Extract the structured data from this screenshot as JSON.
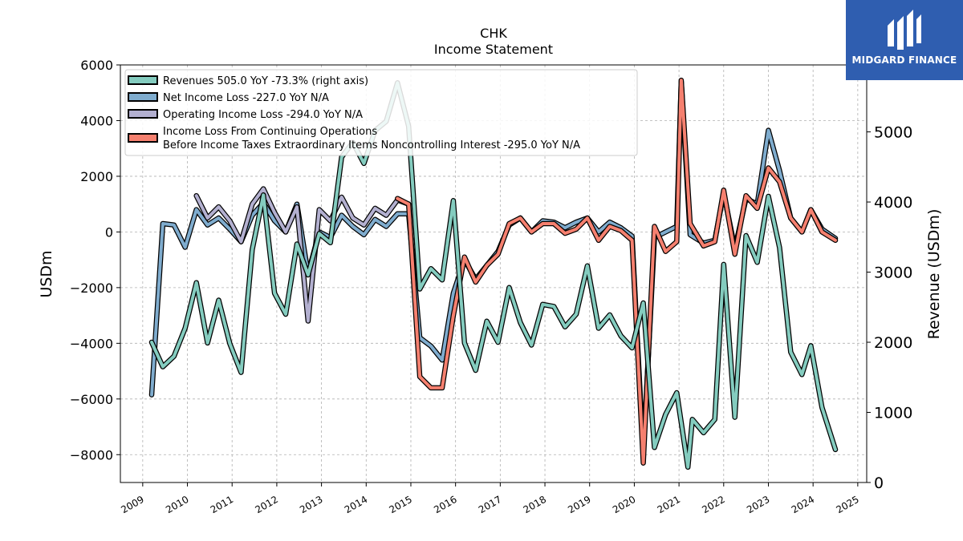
{
  "brand": {
    "name": "MIDGARD FINANCE",
    "bg_color": "#2f5eb0",
    "icon": "midgard-logo-icon"
  },
  "chart_data": {
    "type": "line",
    "title": "CHK",
    "subtitle": "Income Statement",
    "ylabel_left": "USDm",
    "ylabel_right": "Revenue (USDm)",
    "ylim_left": [
      -9000,
      6000
    ],
    "ylim_right": [
      0,
      5955
    ],
    "xlim": [
      2008.5,
      2025.2
    ],
    "yticks_left": [
      -8000,
      -6000,
      -4000,
      -2000,
      0,
      2000,
      4000,
      6000
    ],
    "yticks_right": [
      0,
      1000,
      2000,
      3000,
      4000,
      5000
    ],
    "xticks": [
      2009,
      2010,
      2011,
      2012,
      2013,
      2014,
      2015,
      2016,
      2017,
      2018,
      2019,
      2020,
      2021,
      2022,
      2023,
      2024,
      2025
    ],
    "grid": true,
    "legend_position": "top-left",
    "series": [
      {
        "name": "Revenues  505.0 YoY -73.3% (right axis)",
        "axis": "right",
        "color": "#84ccbf",
        "points": [
          [
            2009.2,
            2000
          ],
          [
            2009.45,
            1650
          ],
          [
            2009.7,
            1800
          ],
          [
            2009.95,
            2200
          ],
          [
            2010.2,
            2850
          ],
          [
            2010.45,
            1990
          ],
          [
            2010.7,
            2600
          ],
          [
            2010.95,
            1980
          ],
          [
            2011.2,
            1570
          ],
          [
            2011.45,
            3320
          ],
          [
            2011.7,
            4100
          ],
          [
            2011.95,
            2700
          ],
          [
            2012.2,
            2400
          ],
          [
            2012.45,
            3400
          ],
          [
            2012.7,
            2960
          ],
          [
            2012.95,
            3550
          ],
          [
            2013.2,
            3420
          ],
          [
            2013.45,
            4640
          ],
          [
            2013.7,
            4850
          ],
          [
            2013.95,
            4550
          ],
          [
            2014.2,
            5020
          ],
          [
            2014.45,
            5150
          ],
          [
            2014.7,
            5700
          ],
          [
            2014.95,
            5080
          ],
          [
            2015.2,
            2760
          ],
          [
            2015.45,
            3050
          ],
          [
            2015.7,
            2890
          ],
          [
            2015.95,
            4020
          ],
          [
            2016.2,
            1990
          ],
          [
            2016.45,
            1600
          ],
          [
            2016.7,
            2300
          ],
          [
            2016.95,
            2000
          ],
          [
            2017.2,
            2780
          ],
          [
            2017.45,
            2280
          ],
          [
            2017.7,
            1960
          ],
          [
            2017.95,
            2540
          ],
          [
            2018.2,
            2510
          ],
          [
            2018.45,
            2220
          ],
          [
            2018.7,
            2400
          ],
          [
            2018.95,
            3090
          ],
          [
            2019.2,
            2200
          ],
          [
            2019.45,
            2390
          ],
          [
            2019.7,
            2090
          ],
          [
            2019.95,
            1920
          ],
          [
            2020.2,
            2560
          ],
          [
            2020.45,
            500
          ],
          [
            2020.7,
            970
          ],
          [
            2020.95,
            1280
          ],
          [
            2021.2,
            220
          ],
          [
            2021.3,
            900
          ],
          [
            2021.55,
            710
          ],
          [
            2021.8,
            900
          ],
          [
            2022.0,
            3110
          ],
          [
            2022.25,
            930
          ],
          [
            2022.5,
            3520
          ],
          [
            2022.75,
            3140
          ],
          [
            2023.0,
            4080
          ],
          [
            2023.25,
            3350
          ],
          [
            2023.5,
            1860
          ],
          [
            2023.75,
            1540
          ],
          [
            2023.95,
            1950
          ],
          [
            2024.2,
            1070
          ],
          [
            2024.5,
            470
          ]
        ]
      },
      {
        "name": "Net Income Loss  -227.0 YoY N/A",
        "axis": "left",
        "color": "#7facce",
        "points": [
          [
            2009.2,
            -5850
          ],
          [
            2009.45,
            300
          ],
          [
            2009.7,
            250
          ],
          [
            2009.95,
            -550
          ],
          [
            2010.2,
            800
          ],
          [
            2010.45,
            250
          ],
          [
            2010.7,
            500
          ],
          [
            2010.95,
            100
          ],
          [
            2011.2,
            -350
          ],
          [
            2011.45,
            600
          ],
          [
            2011.7,
            1050
          ],
          [
            2011.95,
            400
          ],
          [
            2012.2,
            0
          ],
          [
            2012.45,
            1000
          ],
          [
            2012.7,
            -1500
          ],
          [
            2012.95,
            0
          ],
          [
            2013.2,
            -200
          ],
          [
            2013.45,
            600
          ],
          [
            2013.7,
            200
          ],
          [
            2013.95,
            -100
          ],
          [
            2014.2,
            450
          ],
          [
            2014.45,
            200
          ],
          [
            2014.7,
            650
          ],
          [
            2014.95,
            650
          ],
          [
            2015.2,
            -3800
          ],
          [
            2015.45,
            -4100
          ],
          [
            2015.7,
            -4600
          ],
          [
            2015.95,
            -2200
          ],
          [
            2016.2,
            -1000
          ],
          [
            2016.45,
            -1700
          ],
          [
            2016.7,
            -1200
          ],
          [
            2016.95,
            -700
          ],
          [
            2017.2,
            250
          ],
          [
            2017.45,
            500
          ],
          [
            2017.7,
            0
          ],
          [
            2017.95,
            400
          ],
          [
            2018.2,
            350
          ],
          [
            2018.45,
            150
          ],
          [
            2018.7,
            350
          ],
          [
            2018.95,
            500
          ],
          [
            2019.2,
            0
          ],
          [
            2019.45,
            350
          ],
          [
            2019.7,
            150
          ],
          [
            2019.95,
            -150
          ],
          [
            2020.2,
            -8000
          ],
          [
            2020.45,
            -200
          ],
          [
            2020.7,
            0
          ],
          [
            2020.95,
            200
          ],
          [
            2021.05,
            5400
          ],
          [
            2021.25,
            -100
          ],
          [
            2021.55,
            -400
          ],
          [
            2021.8,
            -300
          ],
          [
            2022.0,
            1400
          ],
          [
            2022.25,
            -600
          ],
          [
            2022.5,
            1200
          ],
          [
            2022.75,
            1000
          ],
          [
            2023.0,
            3650
          ],
          [
            2023.25,
            2200
          ],
          [
            2023.5,
            500
          ],
          [
            2023.75,
            0
          ],
          [
            2023.95,
            800
          ],
          [
            2024.2,
            100
          ],
          [
            2024.5,
            -230
          ]
        ]
      },
      {
        "name": "Operating Income Loss  -294.0 YoY N/A",
        "axis": "left",
        "color": "#b3b0d0",
        "points": [
          [
            2010.2,
            1300
          ],
          [
            2010.45,
            500
          ],
          [
            2010.7,
            900
          ],
          [
            2010.95,
            400
          ],
          [
            2011.2,
            -350
          ],
          [
            2011.45,
            1000
          ],
          [
            2011.7,
            1550
          ],
          [
            2011.95,
            700
          ],
          [
            2012.2,
            0
          ],
          [
            2012.45,
            900
          ],
          [
            2012.7,
            -3200
          ],
          [
            2012.95,
            800
          ],
          [
            2013.2,
            400
          ],
          [
            2013.45,
            1250
          ],
          [
            2013.7,
            500
          ],
          [
            2013.95,
            250
          ],
          [
            2014.2,
            850
          ],
          [
            2014.45,
            600
          ],
          [
            2014.7,
            1150
          ],
          [
            2014.95,
            1000
          ]
        ]
      },
      {
        "name": "Income Loss From Continuing Operations Before Income Taxes Extraordinary Items Noncontrolling Interest  -295.0 YoY N/A",
        "axis": "left",
        "color": "#f5806f",
        "points": [
          [
            2014.7,
            1200
          ],
          [
            2014.95,
            1000
          ],
          [
            2015.2,
            -5200
          ],
          [
            2015.45,
            -5600
          ],
          [
            2015.7,
            -5600
          ],
          [
            2015.95,
            -3000
          ],
          [
            2016.2,
            -900
          ],
          [
            2016.45,
            -1800
          ],
          [
            2016.7,
            -1200
          ],
          [
            2016.95,
            -800
          ],
          [
            2017.2,
            300
          ],
          [
            2017.45,
            500
          ],
          [
            2017.7,
            0
          ],
          [
            2017.95,
            300
          ],
          [
            2018.2,
            300
          ],
          [
            2018.45,
            -50
          ],
          [
            2018.7,
            100
          ],
          [
            2018.95,
            500
          ],
          [
            2019.2,
            -300
          ],
          [
            2019.45,
            200
          ],
          [
            2019.7,
            50
          ],
          [
            2019.95,
            -300
          ],
          [
            2020.2,
            -8300
          ],
          [
            2020.45,
            200
          ],
          [
            2020.7,
            -700
          ],
          [
            2020.95,
            -350
          ],
          [
            2021.05,
            5450
          ],
          [
            2021.25,
            300
          ],
          [
            2021.55,
            -500
          ],
          [
            2021.8,
            -350
          ],
          [
            2022.0,
            1500
          ],
          [
            2022.25,
            -800
          ],
          [
            2022.5,
            1300
          ],
          [
            2022.75,
            850
          ],
          [
            2023.0,
            2300
          ],
          [
            2023.25,
            1800
          ],
          [
            2023.5,
            500
          ],
          [
            2023.75,
            0
          ],
          [
            2023.95,
            800
          ],
          [
            2024.2,
            0
          ],
          [
            2024.5,
            -300
          ]
        ]
      }
    ]
  }
}
